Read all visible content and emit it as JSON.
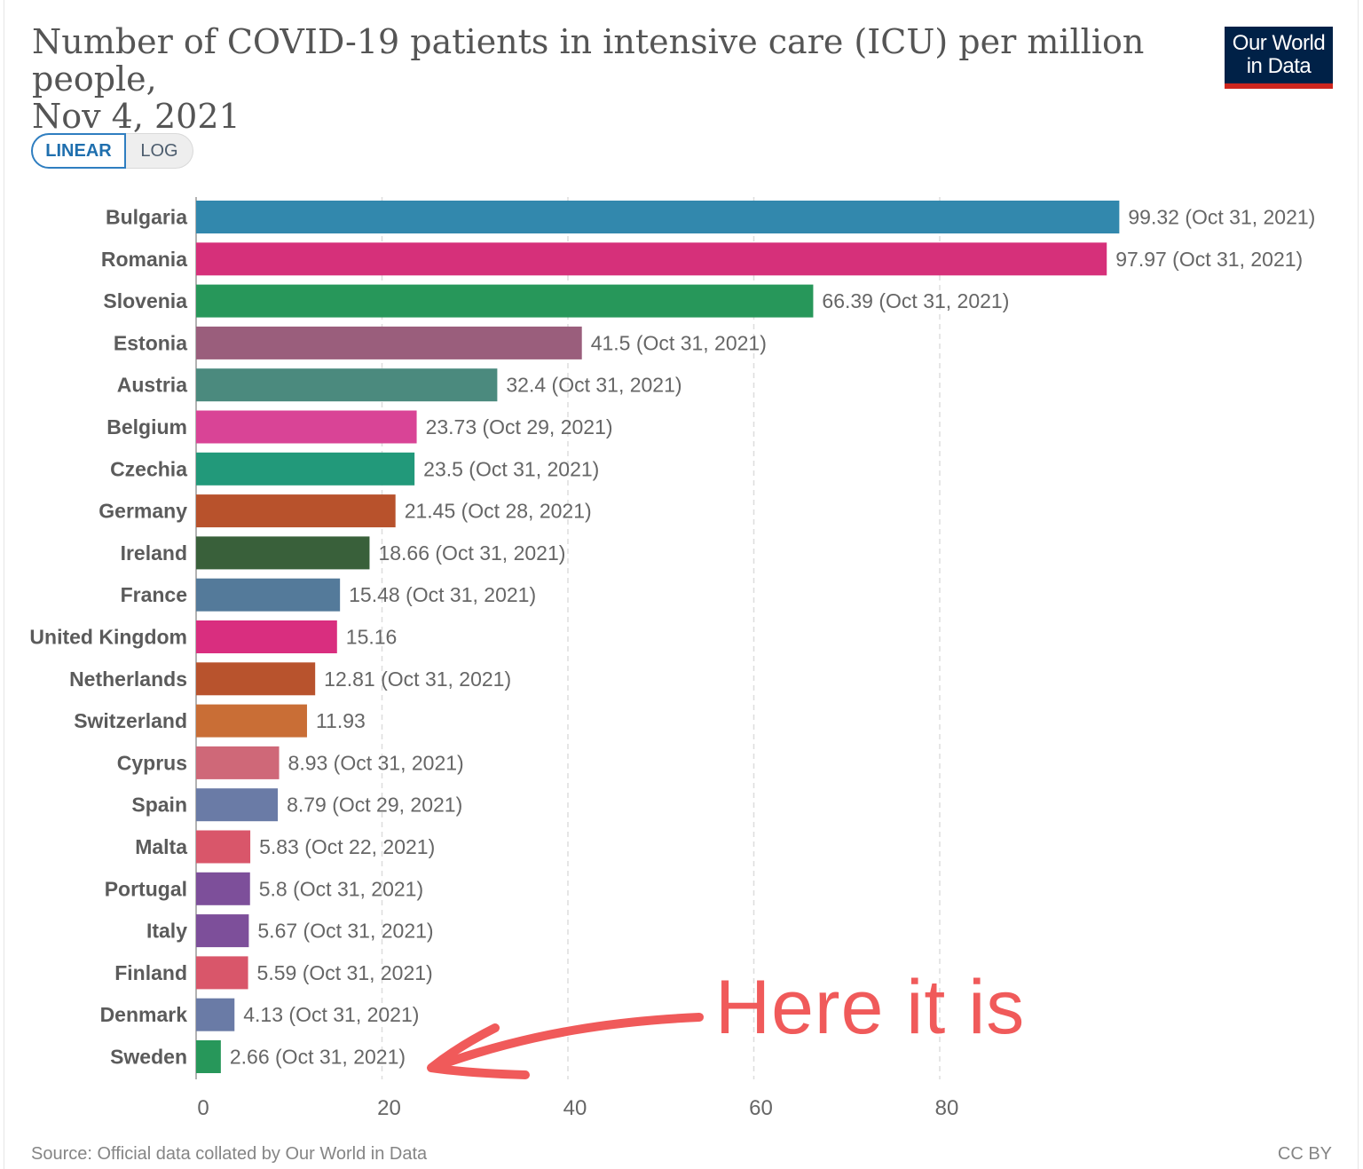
{
  "header": {
    "title_line1": "Number of COVID-19 patients in intensive care (ICU) per million people,",
    "title_line2": "Nov 4, 2021",
    "logo_line1": "Our World",
    "logo_line2": "in Data"
  },
  "toggle": {
    "linear_label": "LINEAR",
    "log_label": "LOG"
  },
  "annotation": {
    "text": "Here it is",
    "color": "#f05a5a"
  },
  "footer": {
    "source": "Source: Official data collated by Our World in Data",
    "license": "CC BY"
  },
  "chart_data": {
    "type": "bar",
    "orientation": "horizontal",
    "title": "Number of COVID-19 patients in intensive care (ICU) per million people, Nov 4, 2021",
    "xlabel": "",
    "ylabel": "",
    "xlim": [
      0,
      100
    ],
    "xticks": [
      0,
      20,
      40,
      60,
      80
    ],
    "grid": true,
    "categories": [
      "Bulgaria",
      "Romania",
      "Slovenia",
      "Estonia",
      "Austria",
      "Belgium",
      "Czechia",
      "Germany",
      "Ireland",
      "France",
      "United Kingdom",
      "Netherlands",
      "Switzerland",
      "Cyprus",
      "Spain",
      "Malta",
      "Portugal",
      "Italy",
      "Finland",
      "Denmark",
      "Sweden"
    ],
    "values": [
      99.32,
      97.97,
      66.39,
      41.5,
      32.4,
      23.73,
      23.5,
      21.45,
      18.66,
      15.48,
      15.16,
      12.81,
      11.93,
      8.93,
      8.79,
      5.83,
      5.8,
      5.67,
      5.59,
      4.13,
      2.66
    ],
    "value_labels": [
      "99.32 (Oct 31, 2021)",
      "97.97 (Oct 31, 2021)",
      "66.39 (Oct 31, 2021)",
      "41.5 (Oct 31, 2021)",
      "32.4 (Oct 31, 2021)",
      "23.73 (Oct 29, 2021)",
      "23.5 (Oct 31, 2021)",
      "21.45 (Oct 28, 2021)",
      "18.66 (Oct 31, 2021)",
      "15.48 (Oct 31, 2021)",
      "15.16",
      "12.81 (Oct 31, 2021)",
      "11.93",
      "8.93 (Oct 31, 2021)",
      "8.79 (Oct 29, 2021)",
      "5.83 (Oct 22, 2021)",
      "5.8 (Oct 31, 2021)",
      "5.67 (Oct 31, 2021)",
      "5.59 (Oct 31, 2021)",
      "4.13 (Oct 31, 2021)",
      "2.66 (Oct 31, 2021)"
    ],
    "colors": [
      "#3288ad",
      "#d6307a",
      "#27975a",
      "#9a5e7c",
      "#4b8a7e",
      "#d94496",
      "#22997a",
      "#b8522c",
      "#39603a",
      "#547a9a",
      "#d92e7f",
      "#b8532d",
      "#c96e36",
      "#cf6878",
      "#6a7ba6",
      "#d9566a",
      "#7d4f9a",
      "#7d4f9a",
      "#d9566a",
      "#6a7ba6",
      "#27975a"
    ]
  }
}
